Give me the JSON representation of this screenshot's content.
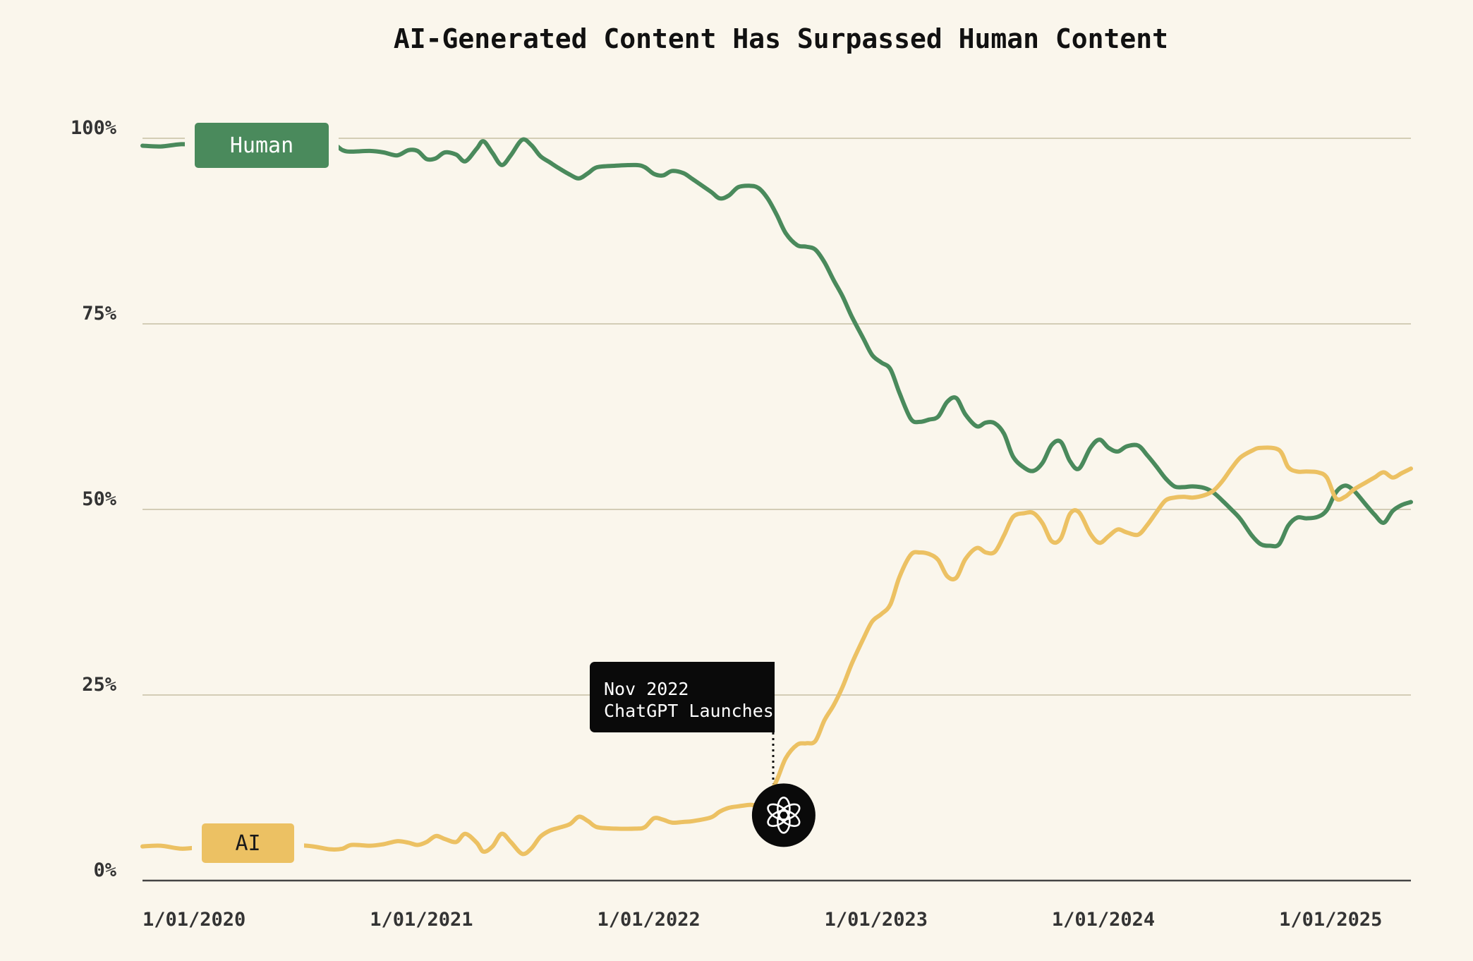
{
  "chart_data": {
    "type": "line",
    "title": "AI-Generated Content Has Surpassed Human Content",
    "xlabel": "",
    "ylabel": "",
    "ylim": [
      0,
      100
    ],
    "xlim": [
      2020.0,
      2025.58
    ],
    "yticks": [
      {
        "value": 0,
        "label": "0%"
      },
      {
        "value": 25,
        "label": "25%"
      },
      {
        "value": 50,
        "label": "50%"
      },
      {
        "value": 75,
        "label": "75%"
      },
      {
        "value": 100,
        "label": "100%"
      }
    ],
    "xticks": [
      {
        "value": 2020,
        "label": "1/01/2020"
      },
      {
        "value": 2021,
        "label": "1/01/2021"
      },
      {
        "value": 2022,
        "label": "1/01/2022"
      },
      {
        "value": 2023,
        "label": "1/01/2023"
      },
      {
        "value": 2024,
        "label": "1/01/2024"
      },
      {
        "value": 2025,
        "label": "1/01/2025"
      }
    ],
    "grid": true,
    "series": [
      {
        "name": "Human",
        "color": "#4a8a5c",
        "label_bg": "#4a8a5c",
        "label_fg": "#ffffff",
        "points": [
          [
            2020.0,
            99.0
          ],
          [
            2020.08,
            98.9
          ],
          [
            2020.17,
            99.2
          ],
          [
            2020.25,
            99.1
          ],
          [
            2020.33,
            98.8
          ],
          [
            2020.42,
            98.6
          ],
          [
            2020.5,
            98.4
          ],
          [
            2020.58,
            98.2
          ],
          [
            2020.67,
            98.0
          ],
          [
            2020.75,
            98.5
          ],
          [
            2020.83,
            99.3
          ],
          [
            2020.88,
            98.4
          ],
          [
            2020.92,
            98.2
          ],
          [
            2021.0,
            98.3
          ],
          [
            2021.06,
            98.1
          ],
          [
            2021.12,
            97.7
          ],
          [
            2021.17,
            98.4
          ],
          [
            2021.21,
            98.3
          ],
          [
            2021.25,
            97.2
          ],
          [
            2021.29,
            97.3
          ],
          [
            2021.33,
            98.1
          ],
          [
            2021.38,
            97.8
          ],
          [
            2021.42,
            96.9
          ],
          [
            2021.47,
            98.6
          ],
          [
            2021.5,
            99.6
          ],
          [
            2021.54,
            98.0
          ],
          [
            2021.58,
            96.4
          ],
          [
            2021.62,
            97.7
          ],
          [
            2021.67,
            99.8
          ],
          [
            2021.71,
            99.1
          ],
          [
            2021.75,
            97.6
          ],
          [
            2021.79,
            96.8
          ],
          [
            2021.83,
            96.0
          ],
          [
            2021.88,
            95.1
          ],
          [
            2021.92,
            94.6
          ],
          [
            2021.96,
            95.3
          ],
          [
            2022.0,
            96.1
          ],
          [
            2022.08,
            96.3
          ],
          [
            2022.17,
            96.4
          ],
          [
            2022.21,
            96.1
          ],
          [
            2022.25,
            95.2
          ],
          [
            2022.29,
            95.0
          ],
          [
            2022.33,
            95.6
          ],
          [
            2022.38,
            95.3
          ],
          [
            2022.42,
            94.5
          ],
          [
            2022.5,
            92.8
          ],
          [
            2022.54,
            91.9
          ],
          [
            2022.58,
            92.3
          ],
          [
            2022.62,
            93.4
          ],
          [
            2022.67,
            93.6
          ],
          [
            2022.71,
            93.3
          ],
          [
            2022.75,
            91.9
          ],
          [
            2022.79,
            89.7
          ],
          [
            2022.83,
            87.2
          ],
          [
            2022.88,
            85.6
          ],
          [
            2022.92,
            85.4
          ],
          [
            2022.96,
            85.0
          ],
          [
            2023.0,
            83.3
          ],
          [
            2023.04,
            80.9
          ],
          [
            2023.08,
            78.7
          ],
          [
            2023.12,
            76.0
          ],
          [
            2023.17,
            73.1
          ],
          [
            2023.21,
            70.8
          ],
          [
            2023.25,
            69.8
          ],
          [
            2023.29,
            68.9
          ],
          [
            2023.33,
            65.7
          ],
          [
            2023.38,
            62.2
          ],
          [
            2023.42,
            61.8
          ],
          [
            2023.46,
            62.1
          ],
          [
            2023.5,
            62.5
          ],
          [
            2023.54,
            64.5
          ],
          [
            2023.58,
            65.0
          ],
          [
            2023.62,
            62.8
          ],
          [
            2023.67,
            61.2
          ],
          [
            2023.71,
            61.7
          ],
          [
            2023.75,
            61.6
          ],
          [
            2023.79,
            60.2
          ],
          [
            2023.83,
            57.1
          ],
          [
            2023.88,
            55.6
          ],
          [
            2023.92,
            55.2
          ],
          [
            2023.96,
            56.3
          ],
          [
            2024.0,
            58.7
          ],
          [
            2024.04,
            59.1
          ],
          [
            2024.08,
            56.5
          ],
          [
            2024.12,
            55.5
          ],
          [
            2024.17,
            58.3
          ],
          [
            2024.21,
            59.4
          ],
          [
            2024.25,
            58.3
          ],
          [
            2024.29,
            57.8
          ],
          [
            2024.33,
            58.5
          ],
          [
            2024.38,
            58.6
          ],
          [
            2024.42,
            57.3
          ],
          [
            2024.46,
            55.8
          ],
          [
            2024.5,
            54.2
          ],
          [
            2024.54,
            53.1
          ],
          [
            2024.58,
            53.0
          ],
          [
            2024.62,
            53.1
          ],
          [
            2024.67,
            52.9
          ],
          [
            2024.71,
            52.3
          ],
          [
            2024.75,
            51.2
          ],
          [
            2024.79,
            50.0
          ],
          [
            2024.83,
            48.7
          ],
          [
            2024.88,
            46.5
          ],
          [
            2024.92,
            45.3
          ],
          [
            2024.96,
            45.1
          ],
          [
            2025.0,
            45.3
          ],
          [
            2025.04,
            47.8
          ],
          [
            2025.08,
            48.9
          ],
          [
            2025.12,
            48.8
          ],
          [
            2025.17,
            49.0
          ],
          [
            2025.21,
            49.9
          ],
          [
            2025.25,
            52.3
          ],
          [
            2025.29,
            53.2
          ],
          [
            2025.33,
            52.5
          ],
          [
            2025.38,
            50.7
          ],
          [
            2025.42,
            49.3
          ],
          [
            2025.46,
            48.2
          ],
          [
            2025.5,
            49.8
          ],
          [
            2025.54,
            50.6
          ],
          [
            2025.58,
            51.0
          ]
        ]
      },
      {
        "name": "AI",
        "color": "#ecc163",
        "label_bg": "#ecc163",
        "label_fg": "#1a1a1a",
        "points": [
          [
            2020.0,
            4.6
          ],
          [
            2020.08,
            4.7
          ],
          [
            2020.17,
            4.3
          ],
          [
            2020.25,
            4.5
          ],
          [
            2020.33,
            4.8
          ],
          [
            2020.42,
            5.0
          ],
          [
            2020.5,
            5.1
          ],
          [
            2020.58,
            5.0
          ],
          [
            2020.67,
            4.8
          ],
          [
            2020.75,
            4.6
          ],
          [
            2020.83,
            4.2
          ],
          [
            2020.88,
            4.3
          ],
          [
            2020.92,
            4.8
          ],
          [
            2021.0,
            4.7
          ],
          [
            2021.06,
            4.9
          ],
          [
            2021.12,
            5.3
          ],
          [
            2021.17,
            5.1
          ],
          [
            2021.21,
            4.8
          ],
          [
            2021.25,
            5.2
          ],
          [
            2021.29,
            6.0
          ],
          [
            2021.33,
            5.6
          ],
          [
            2021.38,
            5.2
          ],
          [
            2021.42,
            6.3
          ],
          [
            2021.47,
            5.1
          ],
          [
            2021.5,
            3.9
          ],
          [
            2021.54,
            4.6
          ],
          [
            2021.58,
            6.3
          ],
          [
            2021.62,
            5.2
          ],
          [
            2021.67,
            3.6
          ],
          [
            2021.71,
            4.3
          ],
          [
            2021.75,
            5.9
          ],
          [
            2021.79,
            6.7
          ],
          [
            2021.83,
            7.1
          ],
          [
            2021.88,
            7.6
          ],
          [
            2021.92,
            8.6
          ],
          [
            2021.96,
            8.0
          ],
          [
            2022.0,
            7.2
          ],
          [
            2022.08,
            7.0
          ],
          [
            2022.17,
            7.0
          ],
          [
            2022.21,
            7.2
          ],
          [
            2022.25,
            8.4
          ],
          [
            2022.29,
            8.2
          ],
          [
            2022.33,
            7.8
          ],
          [
            2022.38,
            7.9
          ],
          [
            2022.42,
            8.0
          ],
          [
            2022.5,
            8.5
          ],
          [
            2022.54,
            9.3
          ],
          [
            2022.58,
            9.8
          ],
          [
            2022.62,
            10.0
          ],
          [
            2022.67,
            10.2
          ],
          [
            2022.71,
            10.2
          ],
          [
            2022.75,
            11.2
          ],
          [
            2022.79,
            13.5
          ],
          [
            2022.83,
            16.5
          ],
          [
            2022.88,
            18.3
          ],
          [
            2022.92,
            18.5
          ],
          [
            2022.96,
            18.8
          ],
          [
            2023.0,
            21.6
          ],
          [
            2023.04,
            23.6
          ],
          [
            2023.08,
            26.1
          ],
          [
            2023.12,
            29.2
          ],
          [
            2023.17,
            32.5
          ],
          [
            2023.21,
            34.9
          ],
          [
            2023.25,
            35.9
          ],
          [
            2023.29,
            37.2
          ],
          [
            2023.33,
            40.9
          ],
          [
            2023.38,
            43.9
          ],
          [
            2023.42,
            44.2
          ],
          [
            2023.46,
            44.0
          ],
          [
            2023.5,
            43.2
          ],
          [
            2023.54,
            41.0
          ],
          [
            2023.58,
            40.8
          ],
          [
            2023.62,
            43.3
          ],
          [
            2023.67,
            44.8
          ],
          [
            2023.71,
            44.2
          ],
          [
            2023.75,
            44.3
          ],
          [
            2023.79,
            46.5
          ],
          [
            2023.83,
            49.0
          ],
          [
            2023.88,
            49.5
          ],
          [
            2023.92,
            49.5
          ],
          [
            2023.96,
            48.1
          ],
          [
            2024.0,
            45.7
          ],
          [
            2024.04,
            46.1
          ],
          [
            2024.08,
            49.4
          ],
          [
            2024.12,
            49.6
          ],
          [
            2024.17,
            46.7
          ],
          [
            2024.21,
            45.5
          ],
          [
            2024.25,
            46.4
          ],
          [
            2024.29,
            47.3
          ],
          [
            2024.33,
            46.9
          ],
          [
            2024.38,
            46.6
          ],
          [
            2024.42,
            47.9
          ],
          [
            2024.46,
            49.6
          ],
          [
            2024.5,
            51.2
          ],
          [
            2024.54,
            51.6
          ],
          [
            2024.58,
            51.7
          ],
          [
            2024.62,
            51.6
          ],
          [
            2024.67,
            51.9
          ],
          [
            2024.71,
            52.5
          ],
          [
            2024.75,
            53.8
          ],
          [
            2024.79,
            55.5
          ],
          [
            2024.83,
            57.0
          ],
          [
            2024.88,
            57.9
          ],
          [
            2024.92,
            58.3
          ],
          [
            2025.0,
            58.0
          ],
          [
            2025.04,
            55.7
          ],
          [
            2025.08,
            55.1
          ],
          [
            2025.12,
            55.1
          ],
          [
            2025.17,
            55.0
          ],
          [
            2025.21,
            54.3
          ],
          [
            2025.25,
            51.5
          ],
          [
            2025.29,
            51.7
          ],
          [
            2025.33,
            52.7
          ],
          [
            2025.38,
            53.6
          ],
          [
            2025.42,
            54.3
          ],
          [
            2025.46,
            55.0
          ],
          [
            2025.5,
            54.3
          ],
          [
            2025.54,
            54.9
          ],
          [
            2025.58,
            55.5
          ]
        ]
      }
    ],
    "annotation": {
      "line1": "Nov 2022",
      "line2": "ChatGPT Launches",
      "x": 2022.83,
      "y": 9.0,
      "icon": "openai-logo-icon"
    }
  }
}
